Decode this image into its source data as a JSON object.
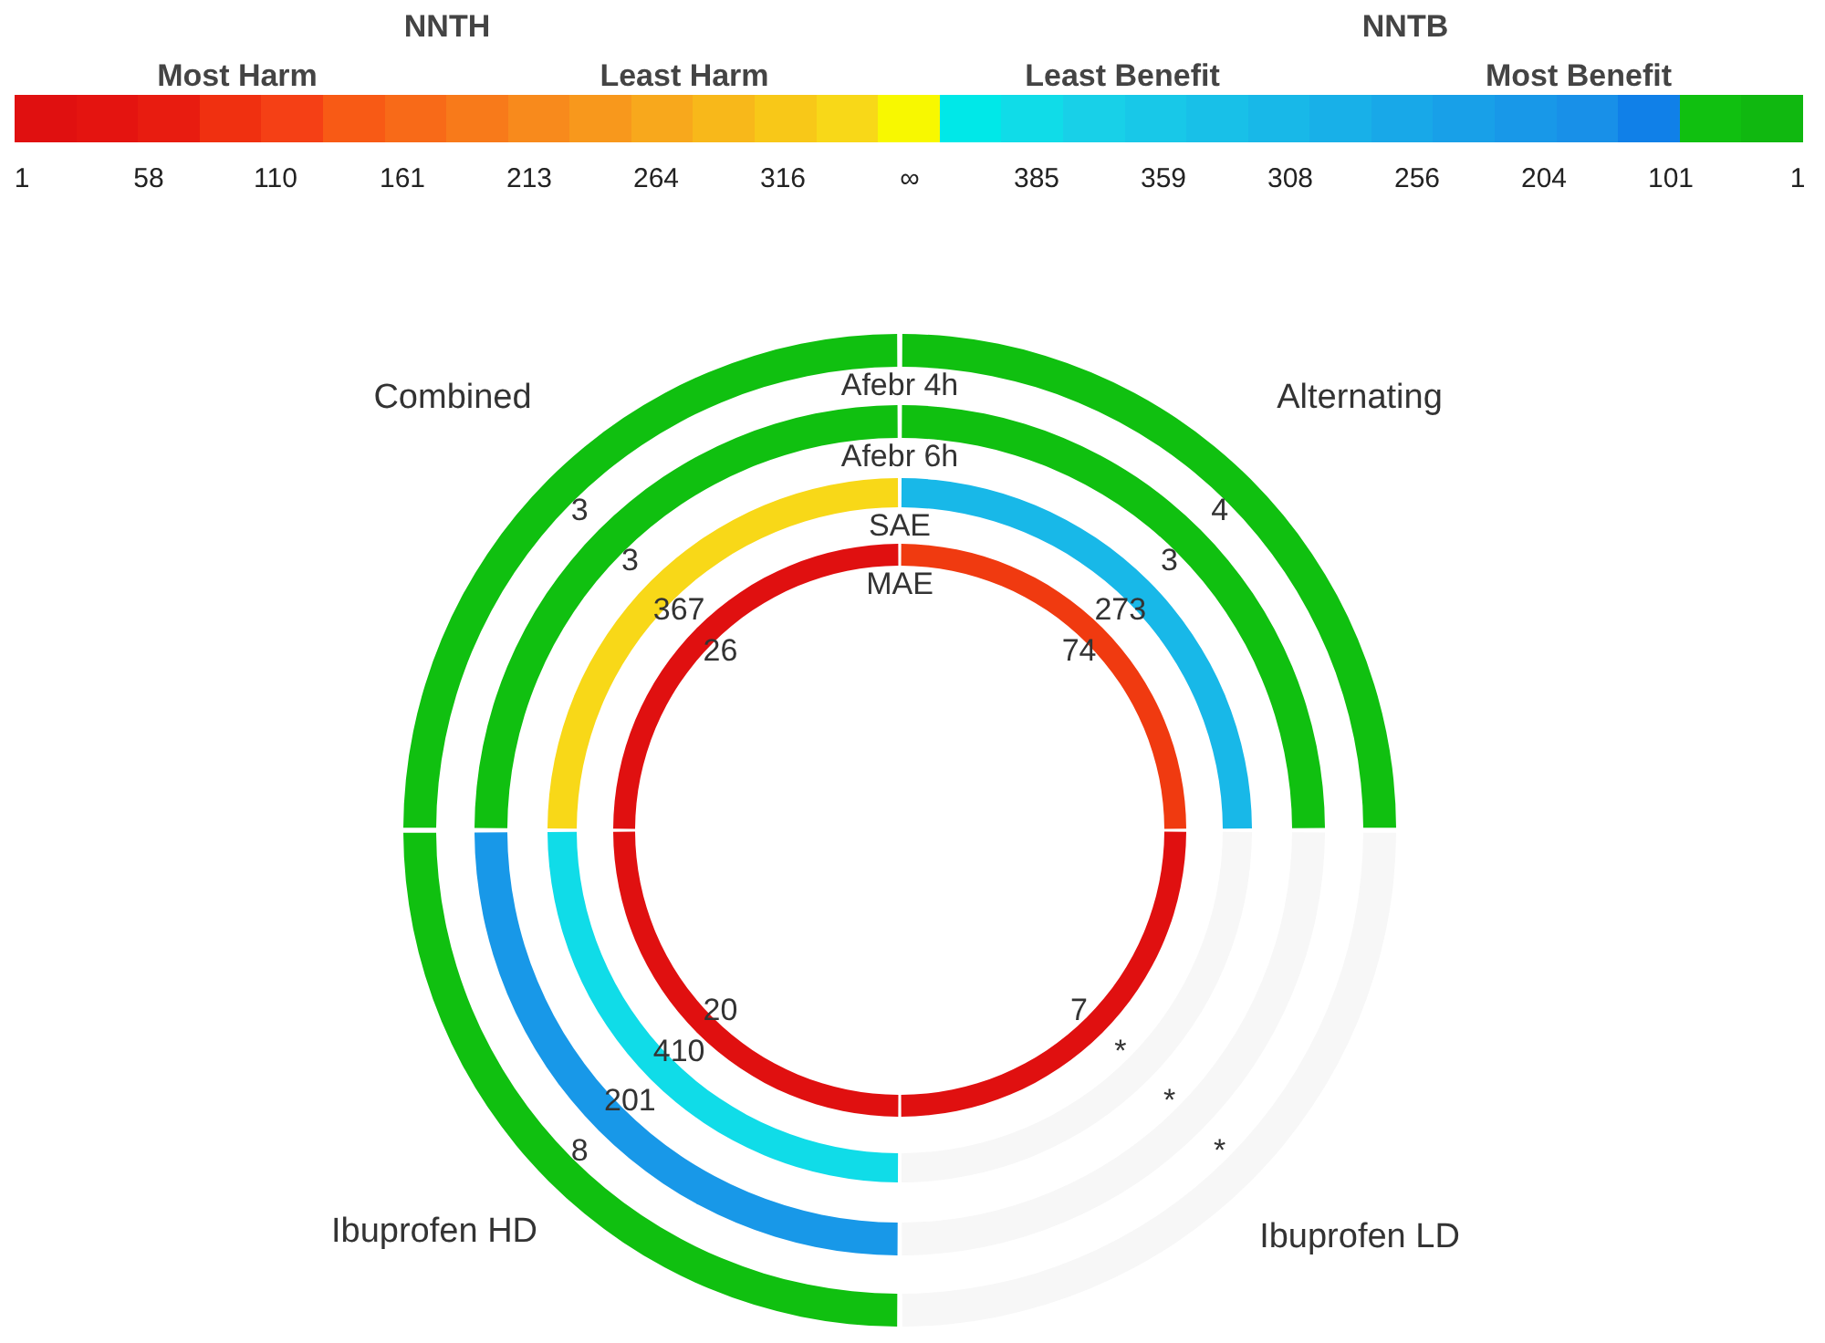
{
  "chart_data": [
    {
      "type": "other",
      "annotations": [
        "NNTH",
        "NNTB",
        "Most Harm",
        "Least Harm",
        "Least Benefit",
        "Most Benefit"
      ],
      "categories": [
        "1",
        "58",
        "110",
        "161",
        "213",
        "264",
        "316",
        "∞",
        "385",
        "359",
        "308",
        "256",
        "204",
        "101",
        "1"
      ],
      "colors": [
        "#e01010",
        "#e41410",
        "#e81c10",
        "#f03010",
        "#f54015",
        "#f85a15",
        "#f86a18",
        "#f87a1a",
        "#f88a1c",
        "#f8981c",
        "#f8a81c",
        "#f8b81a",
        "#f8c818",
        "#f8d818",
        "#f8f800",
        "#00e8e8",
        "#10dce8",
        "#18d0e8",
        "#18c8e8",
        "#18c0e8",
        "#18b8e8",
        "#18b0e8",
        "#18a8e8",
        "#18a0e8",
        "#1898e8",
        "#1890e8",
        "#1080e8",
        "#10c010",
        "#10b810"
      ]
    },
    {
      "type": "other",
      "categories": [
        "Alternating",
        "Ibuprofen LD",
        "Ibuprofen HD",
        "Combined"
      ],
      "data_labels": true,
      "annotations": [
        "*",
        "*",
        "*"
      ],
      "series": [
        {
          "name": "Afebr 4h",
          "values": [
            4,
            null,
            8,
            3
          ],
          "colors": [
            "#10c010",
            "#f7f7f7",
            "#10c010",
            "#10c010"
          ]
        },
        {
          "name": "Afebr 6h",
          "values": [
            3,
            null,
            201,
            3
          ],
          "colors": [
            "#10c010",
            "#f7f7f7",
            "#1898e8",
            "#10c010"
          ]
        },
        {
          "name": "SAE",
          "values": [
            273,
            null,
            410,
            367
          ],
          "colors": [
            "#18b8e8",
            "#f7f7f7",
            "#10dce8",
            "#f8d818"
          ]
        },
        {
          "name": "MAE",
          "values": [
            74,
            7,
            20,
            26
          ],
          "colors": [
            "#f03a10",
            "#e01010",
            "#e01010",
            "#e01010"
          ]
        }
      ]
    }
  ]
}
